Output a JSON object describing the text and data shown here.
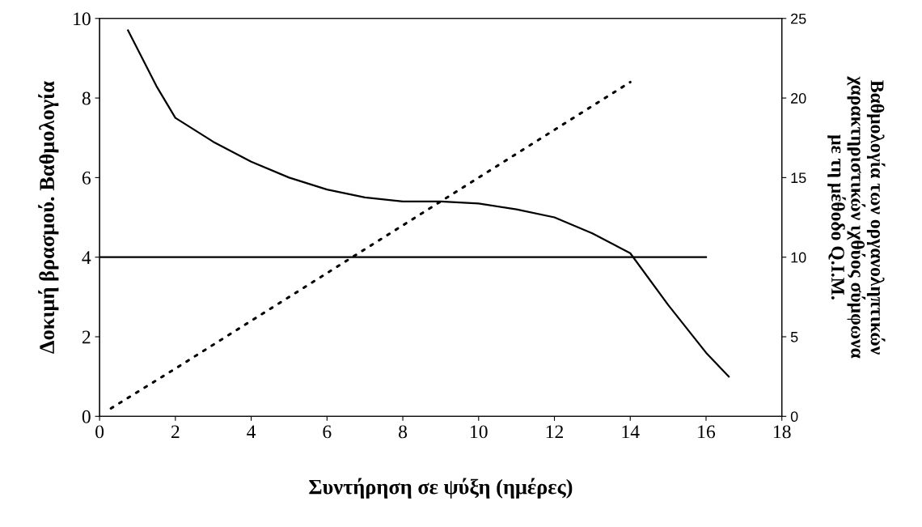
{
  "chart_data": {
    "type": "line",
    "xlabel": "Συντήρηση σε ψύξη (ημέρες)",
    "ylabel": "Δοκιμή βρασμού. Βαθμολογία",
    "y2label": "Βαθμολογία των οργανοληπτικών\nχαρακτηριστικών ιχθύος σύμφωνα\nμε τη μέθοδο Q.I.M.",
    "xlim": [
      0,
      18
    ],
    "xticks": [
      0,
      2,
      4,
      6,
      8,
      10,
      12,
      14,
      16,
      18
    ],
    "ylim": [
      0,
      10
    ],
    "yticks": [
      0,
      2,
      4,
      6,
      8,
      10
    ],
    "y2lim": [
      0,
      25
    ],
    "y2ticks": [
      0,
      5,
      10,
      15,
      20,
      25
    ],
    "grid": false,
    "legend": false,
    "marker": "none",
    "series": [
      {
        "color": "#000000",
        "line_style": "solid",
        "x": [
          0.75,
          1.5,
          2,
          3,
          4,
          5,
          6,
          7,
          8,
          9,
          10,
          11,
          12,
          13,
          14,
          15,
          16,
          16.6
        ],
        "values": [
          9.7,
          8.3,
          7.5,
          6.9,
          6.4,
          6.0,
          5.7,
          5.5,
          5.4,
          5.4,
          5.35,
          5.2,
          5.0,
          4.6,
          4.1,
          2.8,
          1.6,
          1.0
        ]
      },
      {
        "color": "#000000",
        "line_style": "solid",
        "x": [
          0,
          16
        ],
        "values": [
          4,
          4
        ]
      },
      {
        "color": "#000000",
        "line_style": "dotted",
        "axis": "y2",
        "x": [
          0.3,
          2,
          4,
          6,
          8,
          10,
          12,
          14
        ],
        "values": [
          0.5,
          3,
          6,
          9,
          12,
          15,
          18,
          21
        ]
      }
    ]
  }
}
